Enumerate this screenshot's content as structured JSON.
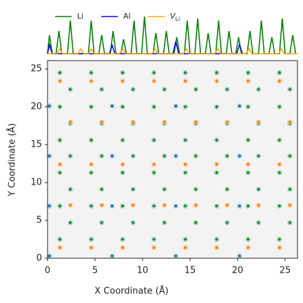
{
  "chart_data": [
    {
      "type": "line",
      "xlim": [
        0,
        26.3
      ],
      "ylim": [
        0,
        1
      ],
      "legend": "top-left",
      "series": [
        {
          "name": "Li",
          "color": "#008000",
          "x": [
            0,
            0.2,
            0.5,
            0.9,
            1.2,
            1.5,
            2.1,
            2.4,
            2.7,
            4.3,
            4.6,
            4.9,
            5.4,
            5.7,
            6.0,
            6.6,
            6.9,
            7.2,
            7.7,
            8.0,
            8.3,
            8.8,
            9.1,
            9.4,
            9.9,
            10.2,
            10.5,
            11.1,
            11.4,
            11.7,
            12.2,
            12.5,
            12.8,
            13.3,
            13.6,
            13.9,
            14.4,
            14.7,
            15.0,
            15.5,
            15.8,
            16.1,
            16.6,
            16.9,
            17.2,
            17.7,
            18.0,
            18.3,
            18.8,
            19.1,
            19.4,
            19.8,
            20.1,
            20.4,
            21.0,
            21.3,
            21.6,
            22.2,
            22.5,
            22.8,
            23.3,
            23.6,
            23.9,
            24.4,
            24.7,
            25.0,
            25.5,
            25.8,
            26.1
          ],
          "values": [
            0,
            0.45,
            0,
            0,
            0.55,
            0,
            0,
            0.8,
            0,
            0,
            0.8,
            0,
            0,
            0.45,
            0,
            0,
            0.55,
            0,
            0,
            0.35,
            0,
            0,
            0.8,
            0,
            0,
            0.9,
            0,
            0,
            0.5,
            0,
            0,
            0.55,
            0,
            0,
            0.4,
            0,
            0,
            0.8,
            0,
            0,
            0.85,
            0,
            0,
            0.5,
            0,
            0,
            0.8,
            0,
            0,
            0.55,
            0,
            0,
            0.4,
            0,
            0,
            0.55,
            0,
            0,
            0.8,
            0,
            0,
            0.4,
            0,
            0,
            0.85,
            0,
            0,
            0.45,
            0
          ]
        },
        {
          "name": "Al",
          "color": "#0000ff",
          "x": [
            0,
            0.2,
            0.5,
            6.5,
            6.8,
            7.1,
            13.2,
            13.5,
            13.8,
            19.9,
            20.2,
            20.5
          ],
          "values": [
            0,
            0.22,
            0,
            0,
            0.2,
            0,
            0,
            0.3,
            0,
            0,
            0.22,
            0
          ]
        },
        {
          "name": "V_Li",
          "color": "#ffa500",
          "x": [
            0,
            1.0,
            1.3,
            1.6,
            3.2,
            3.5,
            3.8,
            4.3,
            4.6,
            4.9,
            7.6,
            7.9,
            8.2,
            11.0,
            11.3,
            11.6,
            14.3,
            14.6,
            14.9,
            17.6,
            17.9,
            18.2,
            20.9,
            21.2,
            21.5,
            24.3,
            24.6,
            24.9,
            26.3
          ],
          "values": [
            0,
            0,
            0.12,
            0,
            0,
            0.12,
            0,
            0,
            0.12,
            0,
            0,
            0.12,
            0,
            0,
            0.12,
            0,
            0,
            0.12,
            0,
            0,
            0.12,
            0,
            0,
            0.12,
            0,
            0,
            0.12,
            0,
            0
          ]
        }
      ]
    },
    {
      "type": "scatter",
      "xlabel": "X Coordinate (Å)",
      "ylabel": "Y Coordinate (Å)",
      "xlim": [
        0,
        26.3
      ],
      "ylim": [
        0,
        26.1
      ],
      "xticks": [
        0,
        5,
        10,
        15,
        20,
        25
      ],
      "yticks": [
        0,
        5,
        10,
        15,
        20,
        25
      ],
      "series": [
        {
          "name": "Li",
          "color": "#1e8c3a",
          "x": [
            1.3,
            4.6,
            7.9,
            11.2,
            14.5,
            17.8,
            21.1,
            24.4,
            1.3,
            4.6,
            7.9,
            11.2,
            14.5,
            17.8,
            21.1,
            24.4,
            1.3,
            4.6,
            7.9,
            11.2,
            14.5,
            17.8,
            21.1,
            24.4,
            1.3,
            4.6,
            7.9,
            11.2,
            14.5,
            17.8,
            21.1,
            24.4,
            1.3,
            4.6,
            7.9,
            11.2,
            14.5,
            17.8,
            21.1,
            24.4,
            1.3,
            4.6,
            7.9,
            11.2,
            14.5,
            17.8,
            21.1,
            24.4,
            2.4,
            5.7,
            9.0,
            12.3,
            15.6,
            18.9,
            22.2,
            25.5,
            2.4,
            5.7,
            9.0,
            12.3,
            15.6,
            18.9,
            22.2,
            25.5,
            2.4,
            5.7,
            9.0,
            12.3,
            15.6,
            18.9,
            22.2,
            25.5,
            2.4,
            5.7,
            9.0,
            12.3,
            15.6,
            18.9,
            22.2,
            25.5,
            2.4,
            5.7,
            9.0,
            12.3,
            15.6,
            18.9,
            22.2,
            25.5
          ],
          "values": [
            2.5,
            2.5,
            2.5,
            2.5,
            2.5,
            2.5,
            2.5,
            2.5,
            6.9,
            6.9,
            6.9,
            6.9,
            6.9,
            6.9,
            6.9,
            6.9,
            11.3,
            11.3,
            11.3,
            11.3,
            11.3,
            11.3,
            11.3,
            11.3,
            15.6,
            15.6,
            15.6,
            15.6,
            15.6,
            15.6,
            15.6,
            15.6,
            20.0,
            20.0,
            20.0,
            20.0,
            20.0,
            20.0,
            20.0,
            20.0,
            24.5,
            24.5,
            24.5,
            24.5,
            24.5,
            24.5,
            24.5,
            24.5,
            4.7,
            4.7,
            4.7,
            4.7,
            4.7,
            4.7,
            4.7,
            4.7,
            9.1,
            9.1,
            9.1,
            9.1,
            9.1,
            9.1,
            9.1,
            9.1,
            13.5,
            13.5,
            13.5,
            13.5,
            13.5,
            13.5,
            13.5,
            13.5,
            17.8,
            17.8,
            17.8,
            17.8,
            17.8,
            17.8,
            17.8,
            17.8,
            22.3,
            22.3,
            22.3,
            22.3,
            22.3,
            22.3,
            22.3,
            22.3
          ]
        },
        {
          "name": "V_Li",
          "color": "#ff7f0e",
          "x": [
            1.3,
            4.6,
            7.9,
            11.2,
            14.5,
            17.8,
            21.1,
            24.4,
            1.3,
            4.6,
            7.9,
            11.2,
            14.5,
            17.8,
            21.1,
            24.4,
            1.3,
            4.6,
            7.9,
            11.2,
            14.5,
            17.8,
            21.1,
            24.4,
            2.4,
            5.7,
            9.0,
            12.3,
            15.6,
            18.9,
            22.2,
            25.5,
            2.4,
            5.7,
            9.0,
            12.3,
            15.6,
            18.9,
            22.2,
            25.5
          ],
          "values": [
            1.4,
            1.4,
            1.4,
            1.4,
            1.4,
            1.4,
            1.4,
            1.4,
            12.4,
            12.4,
            12.4,
            12.4,
            12.4,
            12.4,
            12.4,
            12.4,
            23.4,
            23.4,
            23.4,
            23.4,
            23.4,
            23.4,
            23.4,
            23.4,
            7.0,
            7.0,
            7.0,
            7.0,
            7.0,
            7.0,
            7.0,
            7.0,
            18.0,
            18.0,
            18.0,
            18.0,
            18.0,
            18.0,
            18.0,
            18.0
          ]
        },
        {
          "name": "Al",
          "color": "#1f77b4",
          "x": [
            0.2,
            0.2,
            0.2,
            0.2,
            6.8,
            6.8,
            6.8,
            6.8,
            13.5,
            13.5,
            13.5,
            13.5,
            20.2,
            20.2,
            20.2,
            20.2
          ],
          "values": [
            0.3,
            6.9,
            13.5,
            20.1,
            0.3,
            6.9,
            13.5,
            20.1,
            0.3,
            6.9,
            13.5,
            20.1,
            0.3,
            6.9,
            13.5,
            20.1
          ]
        }
      ]
    }
  ]
}
